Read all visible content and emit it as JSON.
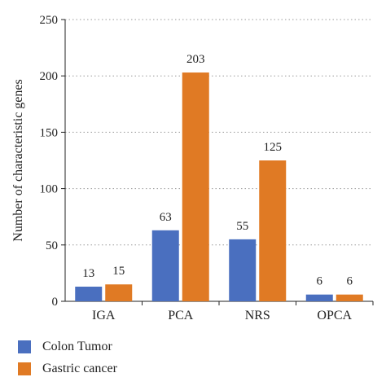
{
  "chart_data": {
    "type": "bar",
    "categories": [
      "IGA",
      "PCA",
      "NRS",
      "OPCA"
    ],
    "series": [
      {
        "name": "Colon Tumor",
        "values": [
          13,
          63,
          55,
          6
        ],
        "color": "#4a6fbf"
      },
      {
        "name": "Gastric cancer",
        "values": [
          15,
          203,
          125,
          6
        ],
        "color": "#e07a24"
      }
    ],
    "data_labels": [
      [
        "13",
        "63",
        "55",
        "6"
      ],
      [
        "15",
        "203",
        "125",
        "6"
      ]
    ],
    "title": "",
    "xlabel": "",
    "ylabel": "Number of characteristic genes",
    "ylim": [
      0,
      250
    ],
    "yticks": [
      0,
      50,
      100,
      150,
      200,
      250
    ],
    "ytick_labels": [
      "0",
      "50",
      "100",
      "150",
      "200",
      "250"
    ],
    "grid": "horizontal dotted",
    "legend_position": "bottom-left"
  }
}
